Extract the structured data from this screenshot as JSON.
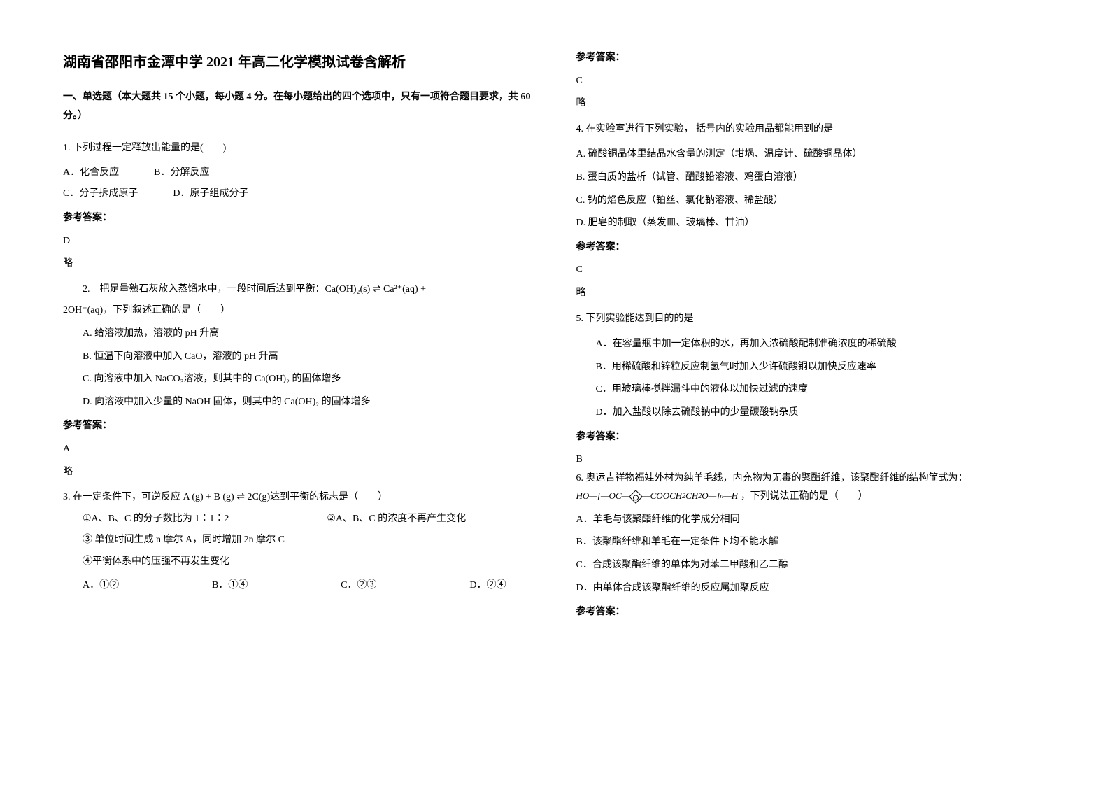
{
  "title": "湖南省邵阳市金潭中学 2021 年高二化学模拟试卷含解析",
  "section1": "一、单选题（本大题共 15 个小题，每小题 4 分。在每小题给出的四个选项中，只有一项符合题目要求，共 60 分。）",
  "q1": {
    "text": "1. 下列过程一定释放出能量的是(　　)",
    "optA": "A．化合反应",
    "optB": "B．分解反应",
    "optC": "C．分子拆成原子",
    "optD": "D．原子组成分子"
  },
  "answerLabel": "参考答案：",
  "a1": "D",
  "note": "略",
  "q2": {
    "text": "2.　把足量熟石灰放入蒸馏水中，一段时间后达到平衡：Ca(OH)₂(s) ⇌ Ca²⁺(aq) +",
    "text2": "2OH⁻(aq)，下列叙述正确的是（　　）",
    "optA": "A. 给溶液加热，溶液的 pH 升高",
    "optB": "B. 恒温下向溶液中加入 CaO，溶液的 pH 升高",
    "optC": "C. 向溶液中加入 NaCO₃溶液，则其中的 Ca(OH)₂ 的固体增多",
    "optD": "D. 向溶液中加入少量的 NaOH 固体，则其中的 Ca(OH)₂ 的固体增多"
  },
  "a2": "A",
  "q3": {
    "text": "3. 在一定条件下，可逆反应 A (g) + B (g) ⇌ 2C(g)达到平衡的标志是（　　）",
    "sub1": "①A、B、C 的分子数比为 1∶1∶2",
    "sub2": "②A、B、C 的浓度不再产生变化",
    "sub3": "③ 单位时间生成 n 摩尔 A，同时增加 2n 摩尔 C",
    "sub4": "④平衡体系中的压强不再发生变化",
    "optA": "A．①②",
    "optB": "B．①④",
    "optC": "C．②③",
    "optD": "D．②④"
  },
  "a3": "C",
  "q4": {
    "text": "4. 在实验室进行下列实验，  括号内的实验用品都能用到的是",
    "optA": "A. 硫酸铜晶体里结晶水含量的测定（坩埚、温度计、硫酸铜晶体）",
    "optB": "B. 蛋白质的盐析（试管、醋酸铅溶液、鸡蛋白溶液）",
    "optC": "C. 钠的焰色反应（铂丝、氯化钠溶液、稀盐酸）",
    "optD": "D. 肥皂的制取（蒸发皿、玻璃棒、甘油）"
  },
  "a4": "C",
  "q5": {
    "text": "5. 下列实验能达到目的的是",
    "optA": "A．在容量瓶中加一定体积的水，再加入浓硫酸配制准确浓度的稀硫酸",
    "optB": "B．用稀硫酸和锌粒反应制氢气时加入少许硫酸铜以加快反应速率",
    "optC": "C．用玻璃棒搅拌漏斗中的液体以加快过滤的速度",
    "optD": "D．加入盐酸以除去硫酸钠中的少量碳酸钠杂质"
  },
  "a5": "B",
  "q6": {
    "text": "6. 奥运吉祥物福娃外材为纯羊毛线，内充物为无毒的聚酯纤维，该聚酯纤维的结构简式为：",
    "formula_tail": "，下列说法正确的是（　　）",
    "optA": "A．羊毛与该聚酯纤维的化学成分相同",
    "optB": "B．该聚酯纤维和羊毛在一定条件下均不能水解",
    "optC": "C．合成该聚酯纤维的单体为对苯二甲酸和乙二醇",
    "optD": "D．由单体合成该聚酯纤维的反应属加聚反应"
  }
}
